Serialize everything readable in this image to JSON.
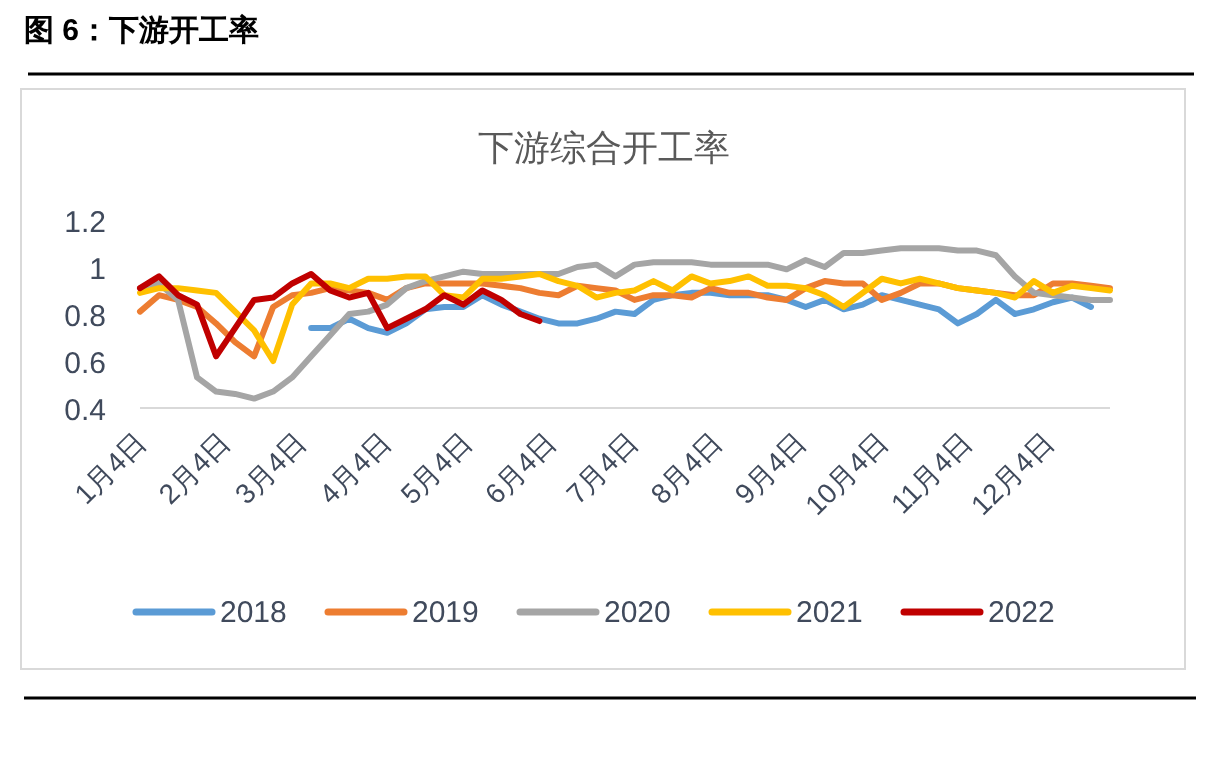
{
  "chart_data": {
    "type": "line",
    "title": "图 6：下游开工率",
    "subtitle": "下游综合开工率",
    "x": [
      "--01-04",
      "--01-11",
      "--01-18",
      "--01-25",
      "--02-01",
      "--02-08",
      "--02-15",
      "--02-22",
      "--03-01",
      "--03-08",
      "--03-15",
      "--03-22",
      "--03-29",
      "--04-05",
      "--04-12",
      "--04-19",
      "--04-26",
      "--05-03",
      "--05-10",
      "--05-17",
      "--05-24",
      "--05-31",
      "--06-07",
      "--06-14",
      "--06-21",
      "--06-28",
      "--07-05",
      "--07-12",
      "--07-19",
      "--07-26",
      "--08-02",
      "--08-09",
      "--08-16",
      "--08-23",
      "--08-30",
      "--09-06",
      "--09-13",
      "--09-20",
      "--09-27",
      "--10-04",
      "--10-11",
      "--10-18",
      "--10-25",
      "--11-01",
      "--11-08",
      "--11-15",
      "--11-22",
      "--11-29",
      "--12-06",
      "--12-13",
      "--12-20",
      "--12-27"
    ],
    "xlim": [
      "--01-04",
      "--12-27"
    ],
    "xticks": [
      {
        "value": "--01-04",
        "label": "1月4日"
      },
      {
        "value": "--02-04",
        "label": "2月4日"
      },
      {
        "value": "--03-04",
        "label": "3月4日"
      },
      {
        "value": "--04-04",
        "label": "4月4日"
      },
      {
        "value": "--05-04",
        "label": "5月4日"
      },
      {
        "value": "--06-04",
        "label": "6月4日"
      },
      {
        "value": "--07-04",
        "label": "7月4日"
      },
      {
        "value": "--08-04",
        "label": "8月4日"
      },
      {
        "value": "--09-04",
        "label": "9月4日"
      },
      {
        "value": "--10-04",
        "label": "10月4日"
      },
      {
        "value": "--11-04",
        "label": "11月4日"
      },
      {
        "value": "--12-04",
        "label": "12月4日"
      }
    ],
    "ylim": [
      0.4,
      1.2
    ],
    "yticks": [
      0.4,
      0.6,
      0.8,
      1,
      1.2
    ],
    "legend": "bottom",
    "line_style": "solid",
    "series": [
      {
        "name": "2018",
        "color": "#5b9bd5",
        "values": [
          null,
          null,
          null,
          null,
          null,
          null,
          null,
          null,
          null,
          0.74,
          0.74,
          0.78,
          0.74,
          0.72,
          0.76,
          0.82,
          0.83,
          0.83,
          0.88,
          0.84,
          0.81,
          0.78,
          0.76,
          0.76,
          0.78,
          0.81,
          0.8,
          0.86,
          0.88,
          0.89,
          0.89,
          0.88,
          0.88,
          0.88,
          0.86,
          0.83,
          0.86,
          0.82,
          0.84,
          0.88,
          0.86,
          0.84,
          0.82,
          0.76,
          0.8,
          0.86,
          0.8,
          0.82,
          0.85,
          0.87,
          0.83,
          null
        ]
      },
      {
        "name": "2019",
        "color": "#ed7d31",
        "values": [
          0.81,
          0.88,
          0.86,
          0.83,
          0.76,
          0.68,
          0.62,
          0.83,
          0.88,
          0.89,
          0.91,
          0.9,
          0.89,
          0.86,
          0.91,
          0.93,
          0.93,
          0.93,
          0.93,
          0.92,
          0.91,
          0.89,
          0.88,
          0.92,
          0.91,
          0.9,
          0.86,
          0.88,
          0.88,
          0.87,
          0.91,
          0.89,
          0.89,
          0.87,
          0.86,
          0.91,
          0.94,
          0.93,
          0.93,
          0.86,
          0.89,
          0.93,
          0.93,
          0.91,
          0.9,
          0.89,
          0.88,
          0.88,
          0.93,
          0.93,
          0.92,
          0.91
        ]
      },
      {
        "name": "2020",
        "color": "#a5a5a5",
        "values": [
          0.91,
          0.93,
          0.86,
          0.53,
          0.47,
          0.46,
          0.44,
          0.47,
          0.53,
          0.62,
          0.71,
          0.8,
          0.81,
          0.84,
          0.91,
          0.94,
          0.96,
          0.98,
          0.97,
          0.97,
          0.97,
          0.97,
          0.97,
          1.0,
          1.01,
          0.96,
          1.01,
          1.02,
          1.02,
          1.02,
          1.01,
          1.01,
          1.01,
          1.01,
          0.99,
          1.03,
          1.0,
          1.06,
          1.06,
          1.07,
          1.08,
          1.08,
          1.08,
          1.07,
          1.07,
          1.05,
          0.96,
          0.89,
          0.88,
          0.87,
          0.86,
          0.86
        ]
      },
      {
        "name": "2021",
        "color": "#ffc000",
        "values": [
          0.89,
          0.91,
          0.91,
          0.9,
          0.89,
          0.81,
          0.73,
          0.6,
          0.84,
          0.93,
          0.93,
          0.91,
          0.95,
          0.95,
          0.96,
          0.96,
          0.88,
          0.87,
          0.95,
          0.95,
          0.96,
          0.97,
          0.94,
          0.92,
          0.87,
          0.89,
          0.9,
          0.94,
          0.9,
          0.96,
          0.93,
          0.94,
          0.96,
          0.92,
          0.92,
          0.91,
          0.88,
          0.83,
          0.89,
          0.95,
          0.93,
          0.95,
          0.93,
          0.91,
          0.9,
          0.89,
          0.87,
          0.94,
          0.89,
          0.92,
          0.91,
          0.9
        ]
      },
      {
        "name": "2022",
        "color": "#c00000",
        "values": [
          0.91,
          0.96,
          0.88,
          0.84,
          0.62,
          0.74,
          0.86,
          0.87,
          0.93,
          0.97,
          0.9,
          0.87,
          0.89,
          0.74,
          0.78,
          0.82,
          0.88,
          0.84,
          0.9,
          0.86,
          0.8,
          0.77,
          null,
          null,
          null,
          null,
          null,
          null,
          null,
          null,
          null,
          null,
          null,
          null,
          null,
          null,
          null,
          null,
          null,
          null,
          null,
          null,
          null,
          null,
          null,
          null,
          null,
          null,
          null,
          null,
          null,
          null
        ]
      }
    ]
  }
}
